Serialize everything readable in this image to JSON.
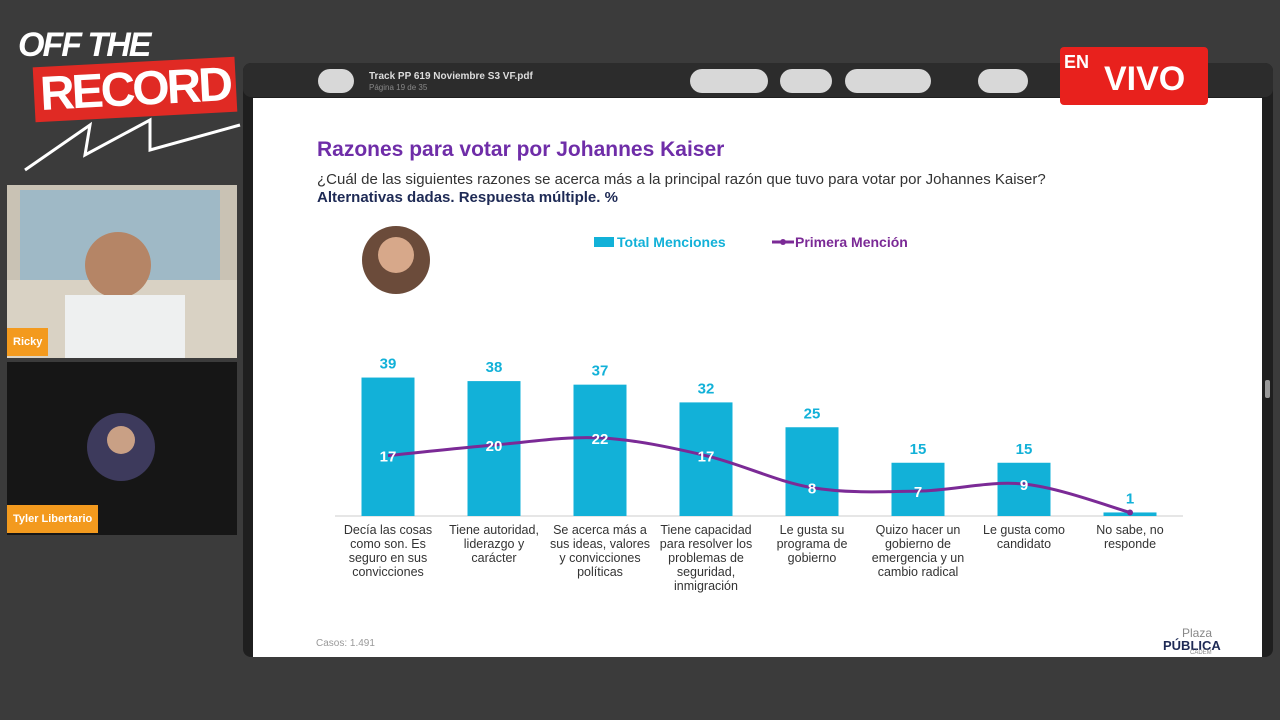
{
  "overlay": {
    "logo": [
      "OFF THE",
      "RECORD"
    ],
    "hosts": [
      "Ricky",
      "Tyler Libertario"
    ],
    "live": [
      "EN",
      "VIVO"
    ]
  },
  "viewer": {
    "file_name": "Track PP 619 Noviembre S3 VF.pdf",
    "page": "Página 19 de 35"
  },
  "chart_data": {
    "type": "bar",
    "title": "Razones para votar por Johannes Kaiser",
    "subtitle": "¿Cuál de las siguientes razones se acerca más a la principal razón que tuvo para votar por Johannes Kaiser?",
    "note": "Alternativas dadas. Respuesta múltiple. %",
    "categories": [
      "Decía las cosas como son. Es seguro en sus convicciones",
      "Tiene autoridad, liderazgo y carácter",
      "Se acerca más a sus ideas, valores y convicciones políticas",
      "Tiene capacidad para resolver los problemas de seguridad, inmigración",
      "Le gusta su programa de gobierno",
      "Quizo hacer un gobierno de emergencia y un cambio radical",
      "Le gusta como candidato",
      "No sabe, no responde"
    ],
    "series": [
      {
        "name": "Total Menciones",
        "type": "bar",
        "color": "#12b1d8",
        "values": [
          39,
          38,
          37,
          32,
          25,
          15,
          15,
          1
        ]
      },
      {
        "name": "Primera Mención",
        "type": "line",
        "color": "#7b2a96",
        "values": [
          17,
          20,
          22,
          17,
          8,
          7,
          9,
          1
        ],
        "value_labels": [
          "17",
          "20",
          "22",
          "17",
          "8",
          "7",
          "9",
          null
        ]
      }
    ],
    "footnote": "Casos: 1.491"
  },
  "footer": {
    "brand": [
      "Plaza",
      "PÚBLICA",
      "CADEM"
    ]
  }
}
